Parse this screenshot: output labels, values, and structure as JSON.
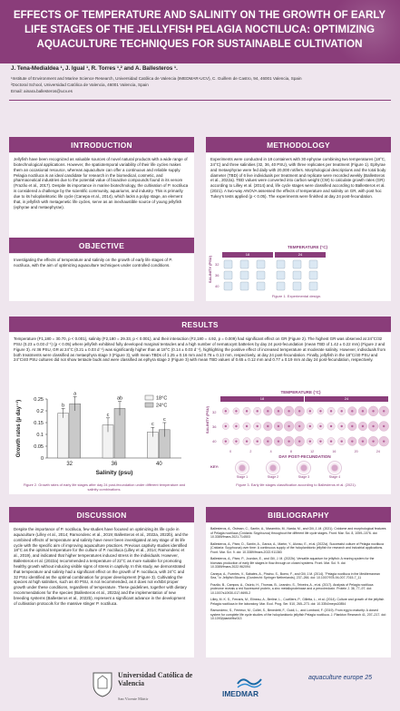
{
  "title": "EFFECTS OF TEMPERATURE AND SALINITY ON THE GROWTH OF EARLY LIFE STAGES OF THE JELLYFISH PELAGIA NOCTILUCA: OPTIMIZING AQUACULTURE TECHNIQUES FOR SUSTAINABLE CULTIVATION",
  "authors": "J. Tena-Medialdea ¹, J. Igual ¹, R. Torres ¹,² and A. Ballesteros ¹.",
  "affiliations": [
    "¹Institute of Environment and Marine Science Research, Universidad Católica de Valencia (IMEDMAR-UCV), C. Guillem de Castro, 94, 46001 Valencia, Spain",
    "²Doctoral School, Universidad Católica de Valencia, 46001 Valencia, Spain",
    "Email: ainara.ballesteros@ucv.es"
  ],
  "sections": {
    "introduction": {
      "heading": "INTRODUCTION",
      "text": "Jellyfish have been recognized as valuable sources of novel natural products with a wide range of biotechnological applications. However, the spatiotemporal variability of their life cycles makes them an occasional resource, whereas aquaculture can offer a continuous and reliable supply. Pelagia noctiluca is an ideal candidate for research in the biomedical, cosmetic, and pharmaceutical industries due to the potential value of bioactive compounds found in its venom (Frazão et al., 2017). Despite its importance in marine biotechnology, the cultivation of P. noctiluca is considered a challenge by the scientific community, aquariums, and industry. This is primarily due to its holoplanktonic life cycle (Canepa et al., 2014), which lacks a polyp stage, an element that, in jellyfish with metagenetic life cycles, serve as an inexhaustible source of young jellyfish (ephyrae and metaephyrae)."
    },
    "methodology": {
      "heading": "METHODOLOGY",
      "text": "Experiments were conducted in 18 containers with 30 ephyrae combining two temperatures (18°C, 24°C) and three salinities (32, 36, 40 PSU), with three replicates per treatment (Figure 1). Ephyrae and metaephyrae were fed daily with 20,000 rotifers. Morphological descriptions and the total body diameter (TBD) of 6 live individuals per treatment and replicate were recorded weekly (Ballesteros et al., 2022a). TBD values were converted into carbon weight (CW) to calculate growth rates (GR) according to Lilley et al. (2014) and, life cycle stages were classified according to Ballesteros et al. (2021). A two-way ANOVA assessed the effects of temperature and salinity on GR, with post hoc Tukey's tests applied (p < 0.05). The experiments were finished at day 24 post-fecundation.",
      "fig_title": "TEMPERATURE (°C)",
      "fig_temps": [
        "18",
        "24"
      ],
      "fig_ylabel": "SALINITY (PSU)",
      "fig_salinities": [
        "32",
        "36",
        "40"
      ],
      "fig_caption": "Figure 1. Experimental design."
    },
    "objective": {
      "heading": "OBJECTIVE",
      "text": "Investigating the effects of temperature and salinity on the growth of early life stages of P. noctiluca, with the aim of optimizing aquaculture techniques under controlled conditions."
    },
    "results": {
      "heading": "RESULTS",
      "text": "Temperature (F1,180 = 30.70, p < 0.001), salinity (F2,180 = 29.33, p < 0.001), and their interaction (F2,180 = 4.92, p = 0.009) had significant effect on GR (Figure 2). The highest GR was observed at 24°C/32 PSU (0.23 ± 0.03 d⁻¹) (p < 0.05) where jellyfish exhibited fully developed marginal tentacles and a high number of nematocyst batteries by day 24 post-fecundation (mean TBD of 1.42 ± 0.22 mm) (Figure 2 and Figure 3). At 36 PSU, GR at 24°C (0.21 ± 0.03 d⁻¹) was significantly higher than at 18°C (0.14 ± 0.03 d⁻¹), highlighting the positive effect of increased temperature at moderate salinity. However, individuals from both treatments were classified as metaephyra stage 3 (Figure 3), with mean TBDs of 1.25 ± 0.16 mm and 0.78 ± 0.13 mm, respectively, at day 24 post-fecundation. Finally, jellyfish in the 18°C/40 PSU and 24°C/40 PSU cultures did not show tentacle buds and were classified as ephyra stage 2 (Figure 3) with mean TBD values of 0.65 ± 0.12 mm and 0.77 ± 0.19 mm at day 24 post-fecundation, respectively.",
      "fig2_caption": "Figure 2. Growth rates of early life stages after day 24 post-fecundation under different temperature and salinity combinations.",
      "fig3_title": "TEMPERATURE (°C)",
      "fig3_temps": [
        "18",
        "24"
      ],
      "fig3_ylabel": "SALINITY (PSU)",
      "fig3_salinities": [
        "32",
        "36",
        "40"
      ],
      "fig3_xlabel": "DAY POST-FECUNDATION",
      "fig3_days": [
        "0",
        "2",
        "4",
        "8",
        "12",
        "16",
        "20",
        "24"
      ],
      "fig3_key": "KEY:",
      "fig3_stages": [
        "Stage 1",
        "Stage 2",
        "Stage 3",
        "Stage 4"
      ],
      "fig3_caption": "Figure 3. Early life stages classification according to Ballesteros et al. (2021)."
    },
    "discussion": {
      "heading": "DISCUSSION",
      "text": "Despite the importance of P. noctiluca, few studies have focused on optimizing its life cycle in aquaculture (Lilley et al., 2014; Ramondenc et al., 2019; Ballesteros et al., 2022a, 2022b), and the combined effects of temperature and salinity have never been investigated at any stage of its life cycle with the specific aim of improving aquaculture practices. Previous captivity studies identified 18°C as the optimal temperature for the culture of P. noctiluca (Lilley et al., 2014; Ramondenc et al., 2019), and indicated that higher temperatures induced stress in the individuals. However, Ballesteros et al. (2022a) recommended a temperature of 22°C as more suitable for promoting healthy growth without inducing visible signs of stress in captivity. In this study, we demonstrated that temperature and salinity had a significant effect on the growth of P. noctiluca, with 24°C and 32 PSU identified as the optimal combination for proper development (Figure 3). Cultivating the species at high salinities, such as 40 PSU, is not recommended, as it does not exhibit proper growth under these conditions, regardless of temperature. These guidelines, together with dietary recommendations for the species (Ballesteros et al., 2022a) and the implementation of new breeding systems (Ballesteros et al., 2022b), represent a significant advance in the development of cultivation protocols for the massive stinger P. noctiluca."
    },
    "bibliography": {
      "heading": "BIBLIOGRAPHY",
      "refs": [
        "Ballesteros, A., Östman, C., Santín, A., Marambio, M., Narda, M., and Gili, J.-M. (2021). Cnidome and morphological features of Pelagia noctiluca (Cnidaria: Scyphozoa) throughout the different life cycle stages. Front. Mar. Sci. 8, 1059–1076. doi: 10.3389/fmars.2021.714503",
        "Ballesteros, A., Páez, D., Santín, A., García, A., Martín, Y., Alonso, E., et al. (2022a). Successful culture of Pelagia noctiluca (Cnidaria: Scyphozoa) over time: A continuous supply of the holoplanktonic jellyfish for research and industrial applications. Front. Mar. Sci. 9. doi: 10.3389/fmars.2022.911383",
        "Ballesteros, A., Páez, P., Jourdan, E., and Gili, J. M. (2022b). Versatile aquarium for jellyfish: A rearing system for the biomass production of early life stages in flow-through on closed systems. Front. Mar. Sci. 9. doi: 10.3389/fmars.2022.962094",
        "Canepa, A., Fuentes, V., Sabatés, A., Piraino, S., Boero, F., and Gili, J.M. (2014). \"Pelagia noctiluca in the Mediterranean Sea,\" in Jellyfish Blooms. (Dordrecht: Springer Netherlands), 237–266. doi: 10.1007/978-94-007-7015-7_11",
        "Frazão, B., Campos, A., Osório, H., Thomas, B., Leandro, S., Teixeira, A., et al. (2017). Analysis of Pelagia noctiluca proteome reveals a red fluorescent protein, a zinc metalloproteinase and a peroxiredoxin. Protein J. 36, 77–97. doi: 10.1007/s10930-017-9695-2",
        "Lilley, M. K. S., Ferraris, M., Elineau, A., Berline, L., Cuvilliers, P., Gilletta, L., et al. (2014). Culture and growth of the jellyfish Pelagia noctiluca in the laboratory. Mar. Ecol. Prog. Ser. 510, 265–273. doi: 10.3354/meps10854",
        "Ramondenc, S., Ferrieux, M., Collet, S., Benedetti, F., Guidi, L., and Lombard, F. (2019). From egg to maturity: A closed system for complete life cycle studies of the holoplanktonic jellyfish Pelagia noctiluca. J. Plankton Research 41, 207–217. doi: 10.1093/plankt/fbz013"
      ]
    }
  },
  "chart_data": {
    "type": "bar",
    "categories": [
      "32",
      "36",
      "40"
    ],
    "series": [
      {
        "name": "18°C",
        "values": [
          0.19,
          0.14,
          0.11
        ],
        "errors": [
          0.02,
          0.03,
          0.02
        ],
        "labels": [
          "b",
          "c",
          "c"
        ],
        "color": "#f2f2f2"
      },
      {
        "name": "24°C",
        "values": [
          0.23,
          0.21,
          0.12
        ],
        "errors": [
          0.03,
          0.03,
          0.03
        ],
        "labels": [
          "a",
          "ab",
          "c"
        ],
        "color": "#c9c9c9"
      }
    ],
    "xlabel": "Salinity (psu)",
    "ylabel": "Growth rates (μ day⁻¹)",
    "ylim": [
      0,
      0.25
    ],
    "yticks": [
      "0",
      "0.05",
      "0.1",
      "0.15",
      "0.2",
      "0.25"
    ],
    "legend_position": "top-right"
  },
  "logos": {
    "ucv": "Universidad Católica de Valencia",
    "ucv_sub": "San Vicente Mártir",
    "imedmar": "IMEDMAR",
    "aqua": "aquaculture europe 25"
  },
  "colors": {
    "accent": "#8a3d7a",
    "background": "#efe6ee"
  }
}
